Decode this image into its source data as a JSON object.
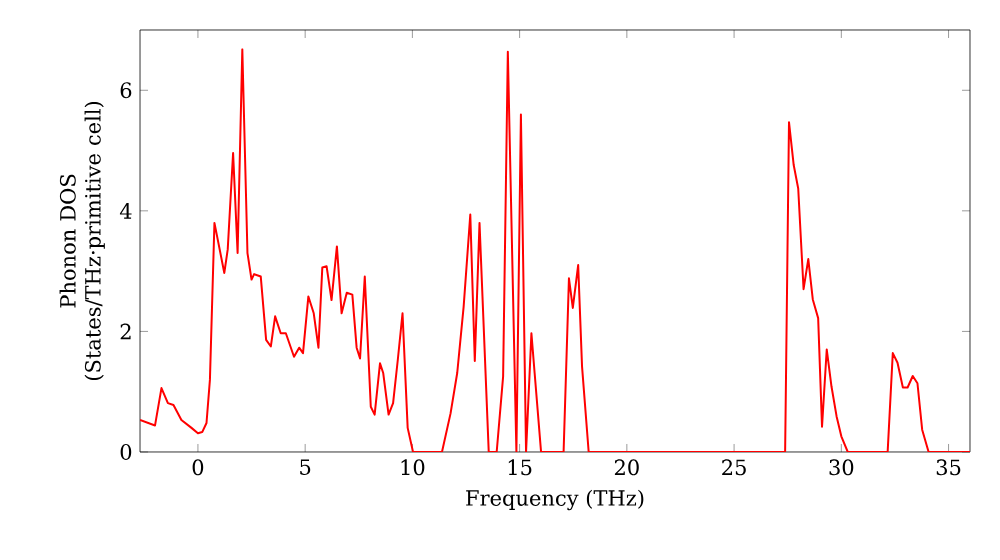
{
  "chart_data": {
    "type": "line",
    "xlabel": "Frequency (THz)",
    "ylabel": "Phonon DOS (States/THz·primitive cell)",
    "xlim": [
      -2.7,
      36
    ],
    "ylim": [
      0,
      7
    ],
    "xticks": [
      0,
      5,
      10,
      15,
      20,
      25,
      30,
      35
    ],
    "yticks": [
      0,
      2,
      4,
      6
    ],
    "marker": "none",
    "line_style": "solid",
    "series": [
      {
        "color": "#ff0000",
        "x": [
          -2.7,
          -2.0,
          -1.7,
          -1.4,
          -1.14,
          -0.77,
          -0.3,
          0,
          0.2,
          0.4,
          0.56,
          0.77,
          1.23,
          1.39,
          1.64,
          1.85,
          2.07,
          2.31,
          2.5,
          2.62,
          2.93,
          3.18,
          3.4,
          3.6,
          3.86,
          4.1,
          4.48,
          4.72,
          4.9,
          5.15,
          5.4,
          5.62,
          5.8,
          6.0,
          6.23,
          6.48,
          6.7,
          6.94,
          7.2,
          7.4,
          7.56,
          7.78,
          8.06,
          8.24,
          8.49,
          8.64,
          8.89,
          9.1,
          9.32,
          9.54,
          9.78,
          10.03,
          11.38,
          11.78,
          12.09,
          12.39,
          12.7,
          12.91,
          13.13,
          13.56,
          13.93,
          14.23,
          14.45,
          14.85,
          15.06,
          15.3,
          15.55,
          15.7,
          16.0,
          17.05,
          17.3,
          17.48,
          17.73,
          17.91,
          18.22,
          27.38,
          27.56,
          27.78,
          27.99,
          28.24,
          28.46,
          28.67,
          28.92,
          29.1,
          29.32,
          29.54,
          29.78,
          30.0,
          30.3,
          32.16,
          32.4,
          32.62,
          32.87,
          33.09,
          33.33,
          33.55,
          33.77,
          34.07,
          36.0
        ],
        "values": [
          0.53,
          0.44,
          1.06,
          0.81,
          0.78,
          0.53,
          0.4,
          0.31,
          0.33,
          0.48,
          1.2,
          3.8,
          2.97,
          3.36,
          4.96,
          3.3,
          6.68,
          3.3,
          2.86,
          2.95,
          2.91,
          1.86,
          1.75,
          2.25,
          1.97,
          1.97,
          1.58,
          1.73,
          1.64,
          2.58,
          2.3,
          1.73,
          3.06,
          3.08,
          2.52,
          3.41,
          2.3,
          2.64,
          2.61,
          1.73,
          1.55,
          2.91,
          0.75,
          0.62,
          1.47,
          1.31,
          0.62,
          0.81,
          1.53,
          2.3,
          0.4,
          0,
          0,
          0.64,
          1.31,
          2.41,
          3.94,
          1.51,
          3.8,
          0,
          0,
          1.25,
          6.64,
          0,
          5.6,
          0,
          1.97,
          1.31,
          0,
          0,
          2.88,
          2.39,
          3.1,
          1.42,
          0,
          0,
          5.47,
          4.76,
          4.37,
          2.7,
          3.2,
          2.53,
          2.22,
          0.42,
          1.7,
          1.09,
          0.59,
          0.26,
          0,
          0,
          1.64,
          1.48,
          1.07,
          1.07,
          1.26,
          1.14,
          0.37,
          0,
          0
        ]
      }
    ]
  }
}
